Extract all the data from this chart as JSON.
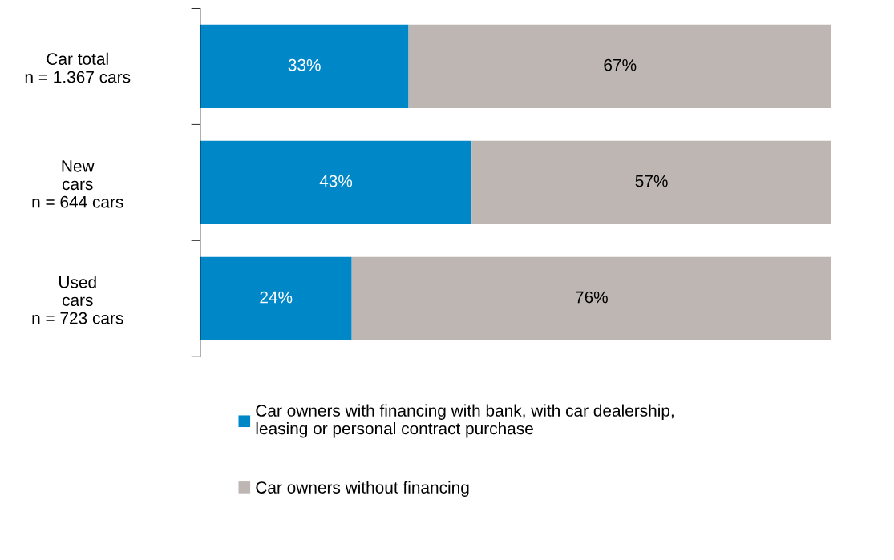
{
  "chart_data": {
    "type": "bar",
    "orientation": "horizontal",
    "stacked": true,
    "categories": [
      "Car total\nn = 1.367 cars",
      "New\ncars\nn = 644 cars",
      "Used\ncars\nn = 723 cars"
    ],
    "series": [
      {
        "name": "Car owners with financing with bank, with car dealership,\nleasing or personal contract purchase",
        "color": "#0087c8",
        "values": [
          33,
          43,
          24
        ],
        "value_labels": [
          "33%",
          "43%",
          "24%"
        ]
      },
      {
        "name": "Car owners without financing",
        "color": "#bdb6b3",
        "values": [
          67,
          57,
          76
        ],
        "value_labels": [
          "67%",
          "57%",
          "76%"
        ]
      }
    ],
    "xlim": [
      0,
      100
    ],
    "tick_labels": "y",
    "grid": false,
    "legend": "bottom"
  }
}
